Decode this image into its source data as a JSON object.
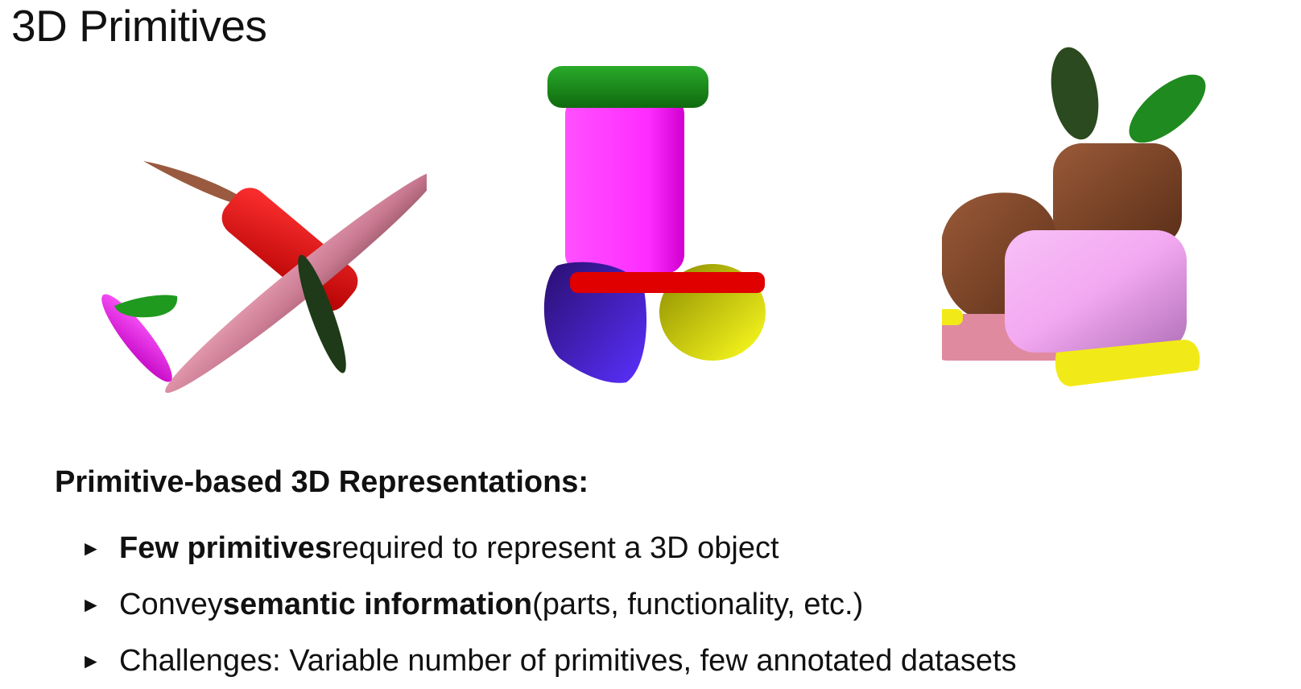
{
  "slide": {
    "title": "3D Primitives"
  },
  "figures": [
    {
      "name": "airplane",
      "part_colors": [
        "#d98aa0",
        "#e00000",
        "#9a5a40",
        "#e02ee0",
        "#1f9a1f",
        "#1e3a18"
      ]
    },
    {
      "name": "chair",
      "part_colors": [
        "#1a8a1a",
        "#ff2cff",
        "#4a1fd0",
        "#e00000",
        "#d9d900"
      ]
    },
    {
      "name": "animal",
      "part_colors": [
        "#2b4a1f",
        "#1f8a1f",
        "#7a3e22",
        "#f2a8f0",
        "#e08aa0",
        "#f2ea18"
      ]
    }
  ],
  "section": {
    "heading": "Primitive-based 3D Representations:"
  },
  "bullets": [
    {
      "marker": "►",
      "lead": "",
      "bold": "Few primitives",
      "rest": " required to represent a 3D object"
    },
    {
      "marker": "►",
      "lead": "Convey ",
      "bold": "semantic information",
      "rest": " (parts, functionality, etc.)"
    },
    {
      "marker": "►",
      "lead": "Challenges: Variable number of primitives, few annotated datasets",
      "bold": "",
      "rest": ""
    }
  ]
}
